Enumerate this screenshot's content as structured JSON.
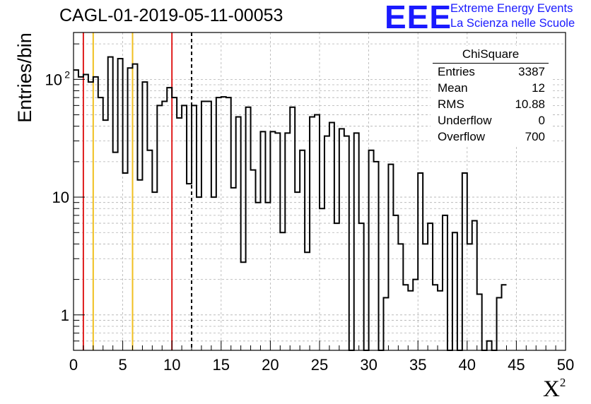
{
  "title": "CAGL-01-2019-05-11-00053",
  "logo": {
    "mark": "EEE",
    "line1": "Extreme Energy Events",
    "line2": "La Scienza nelle Scuole",
    "color": "#1a1aff"
  },
  "stats": {
    "header": "ChiSquare",
    "rows": [
      {
        "label": "Entries",
        "value": "3387"
      },
      {
        "label": "Mean",
        "value": "12"
      },
      {
        "label": "RMS",
        "value": "10.88"
      },
      {
        "label": "Underflow",
        "value": "0"
      },
      {
        "label": "Overflow",
        "value": "700"
      }
    ]
  },
  "chart_data": {
    "type": "histogram",
    "title": "CAGL-01-2019-05-11-00053",
    "xlabel": "X",
    "xlabel_superscript": "2",
    "ylabel": "Entries/bin",
    "xlim": [
      0,
      50
    ],
    "ylim": [
      0.5,
      250
    ],
    "yscale": "log",
    "grid": true,
    "bin_width": 0.5,
    "x_ticks": [
      "0",
      "5",
      "10",
      "15",
      "20",
      "25",
      "30",
      "35",
      "40",
      "45",
      "50"
    ],
    "y_ticks": [
      {
        "value": 1,
        "base": "1",
        "exp": ""
      },
      {
        "value": 10,
        "base": "10",
        "exp": ""
      },
      {
        "value": 100,
        "base": "10",
        "exp": "2"
      }
    ],
    "values": [
      120,
      105,
      110,
      95,
      105,
      70,
      45,
      155,
      24,
      150,
      16,
      125,
      135,
      14,
      95,
      25,
      11,
      60,
      65,
      85,
      70,
      47,
      60,
      13,
      60,
      10,
      65,
      65,
      10,
      70,
      71,
      70,
      12,
      48,
      2.8,
      58,
      17,
      9,
      36,
      9,
      36,
      35,
      5,
      35,
      58,
      11,
      25,
      3.4,
      48,
      50,
      8,
      33,
      43,
      6,
      38,
      33,
      0.4,
      35,
      6,
      0.4,
      25,
      20,
      0.4,
      1.4,
      19,
      7,
      4,
      1.8,
      1.6,
      2,
      16,
      4,
      6,
      1.8,
      1.6,
      7,
      0.4,
      5,
      0.4,
      16,
      4,
      6.3,
      1.5,
      0.5,
      0.6,
      0.5,
      1.4,
      1.8
    ],
    "vlines": [
      {
        "x": 1,
        "color": "#e01b1b",
        "style": "solid"
      },
      {
        "x": 2,
        "color": "#f0c020",
        "style": "solid"
      },
      {
        "x": 6,
        "color": "#f0c020",
        "style": "solid"
      },
      {
        "x": 10,
        "color": "#e01b1b",
        "style": "solid"
      },
      {
        "x": 12,
        "color": "#000000",
        "style": "dashed"
      }
    ]
  }
}
